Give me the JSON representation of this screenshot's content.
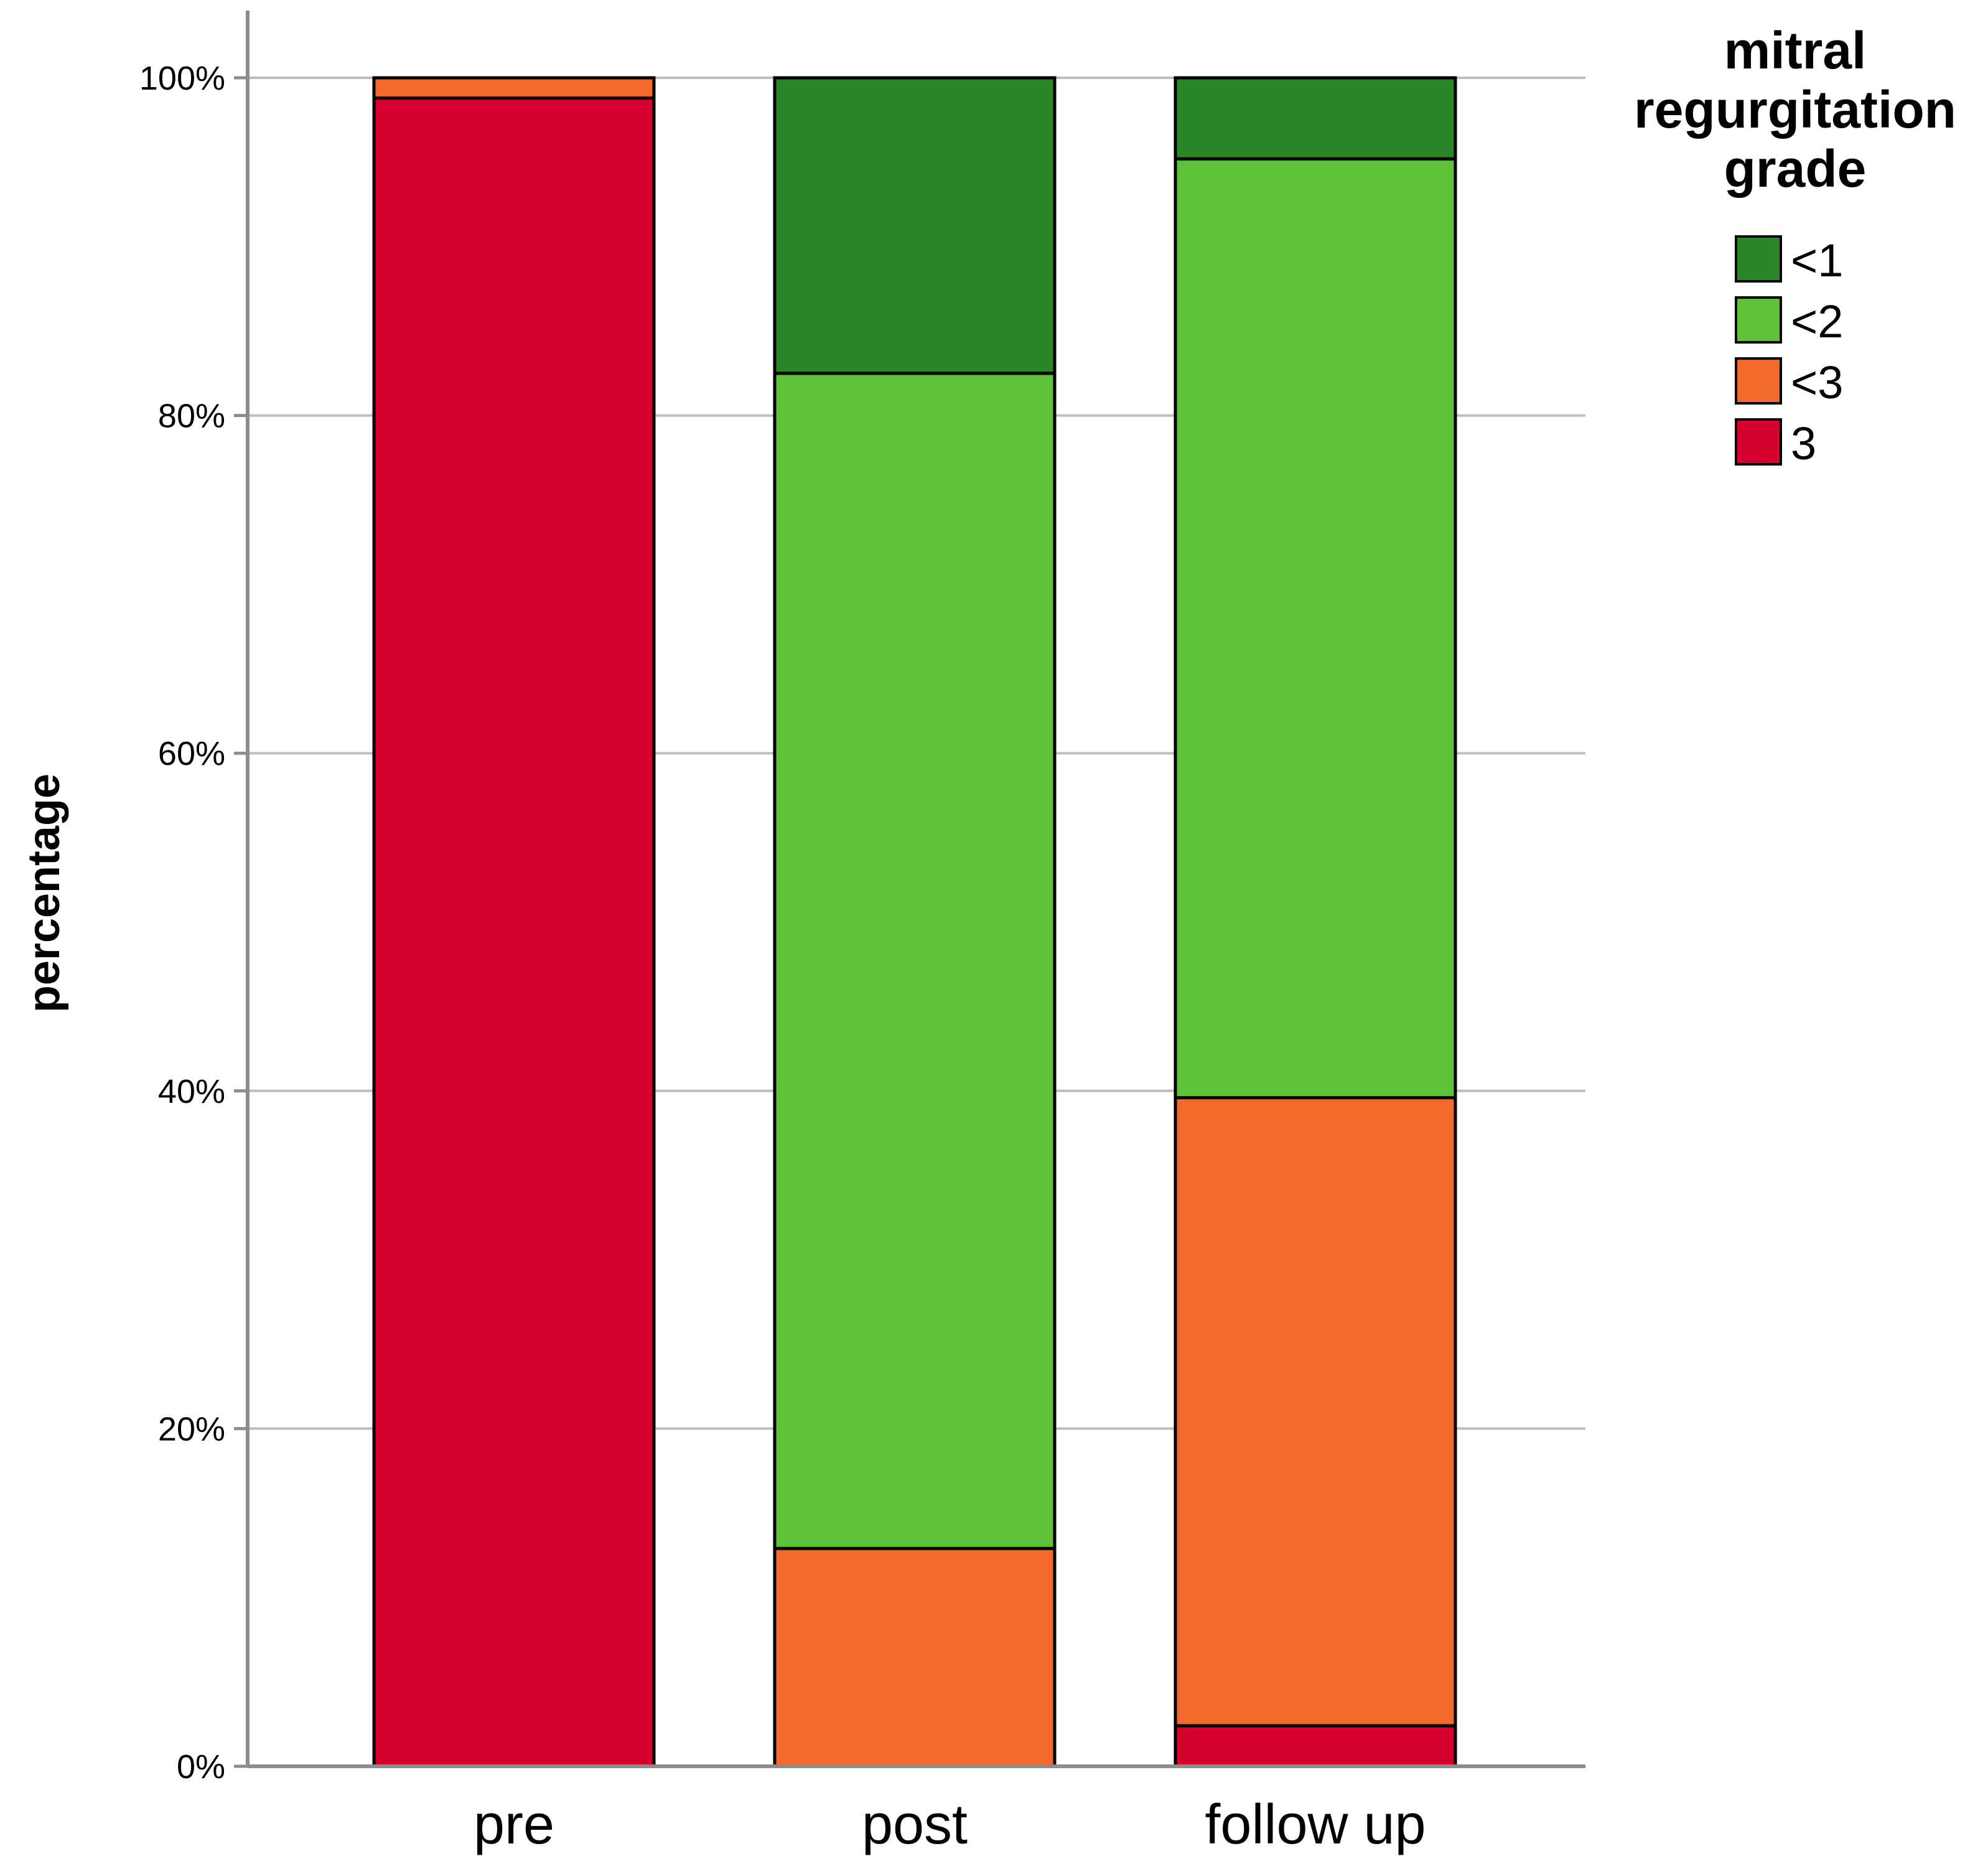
{
  "chart_data": {
    "type": "bar",
    "stacked": true,
    "orientation": "vertical",
    "categories": [
      "pre",
      "post",
      "follow up"
    ],
    "series": [
      {
        "name": "3",
        "color": "#D6002E",
        "values": [
          98.8,
          0.0,
          2.4
        ]
      },
      {
        "name": "<3",
        "color": "#F2692C",
        "values": [
          1.2,
          12.9,
          37.2
        ]
      },
      {
        "name": "<2",
        "color": "#5FC339",
        "values": [
          0.0,
          69.6,
          55.6
        ]
      },
      {
        "name": "<1",
        "color": "#29872A",
        "values": [
          0.0,
          17.5,
          4.8
        ]
      }
    ],
    "legend_order": [
      "<1",
      "<2",
      "<3",
      "3"
    ],
    "legend_title": [
      "mitral",
      "regurgitation",
      "grade"
    ],
    "legend_position": "right",
    "title": "",
    "xlabel": "",
    "ylabel": "percentage",
    "ylim": [
      0,
      100
    ],
    "yticks": [
      0,
      20,
      40,
      60,
      80,
      100
    ],
    "ytick_labels": [
      "0%",
      "20%",
      "40%",
      "60%",
      "80%",
      "100%"
    ],
    "grid": "horizontal",
    "colors": {
      "grid": "#BDBDBD",
      "axis": "#8C8C8C",
      "bar_edge": "#000000"
    }
  }
}
